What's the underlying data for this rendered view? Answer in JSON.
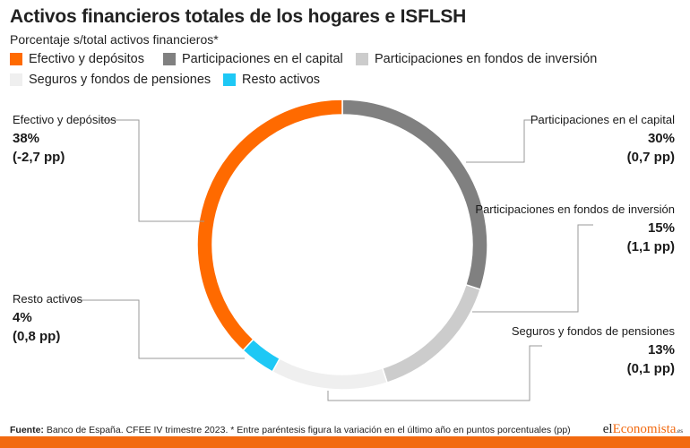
{
  "title": "Activos financieros totales de los hogares e ISFLSH",
  "subtitle": "Porcentaje s/total activos financieros*",
  "legend": [
    {
      "label": "Efectivo y depósitos",
      "color": "#ff6a00"
    },
    {
      "label": "Participaciones en el capital",
      "color": "#808080"
    },
    {
      "label": "Participaciones en fondos de inversión",
      "color": "#cccccc"
    },
    {
      "label": "Seguros y fondos de pensiones",
      "color": "#efefef"
    },
    {
      "label": "Resto activos",
      "color": "#1ec8f5"
    }
  ],
  "chart_data": {
    "type": "pie",
    "variant": "donut",
    "categories": [
      "Participaciones en el capital",
      "Participaciones en fondos de inversión",
      "Seguros y fondos de pensiones",
      "Resto activos",
      "Efectivo y depósitos"
    ],
    "values": [
      30,
      15,
      13,
      4,
      38
    ],
    "colors": [
      "#808080",
      "#cccccc",
      "#efefef",
      "#1ec8f5",
      "#ff6a00"
    ],
    "labels": [
      {
        "name": "Efectivo y depósitos",
        "pct": "38%",
        "chg": "(-2,7 pp)"
      },
      {
        "name": "Participaciones en el capital",
        "pct": "30%",
        "chg": "(0,7 pp)"
      },
      {
        "name": "Participaciones en fondos de inversión",
        "pct": "15%",
        "chg": "(1,1 pp)"
      },
      {
        "name": "Seguros y fondos de pensiones",
        "pct": "13%",
        "chg": "(0,1 pp)"
      },
      {
        "name": "Resto activos",
        "pct": "4%",
        "chg": "(0,8 pp)"
      }
    ]
  },
  "footer": {
    "source_label": "Fuente:",
    "source_text": " Banco de España. CFEE IV trimestre 2023. * Entre paréntesis figura la variación en el último año en puntos porcentuales (pp)"
  },
  "logo": {
    "part1": "el",
    "part2": "Economista",
    "suffix": ".es"
  }
}
